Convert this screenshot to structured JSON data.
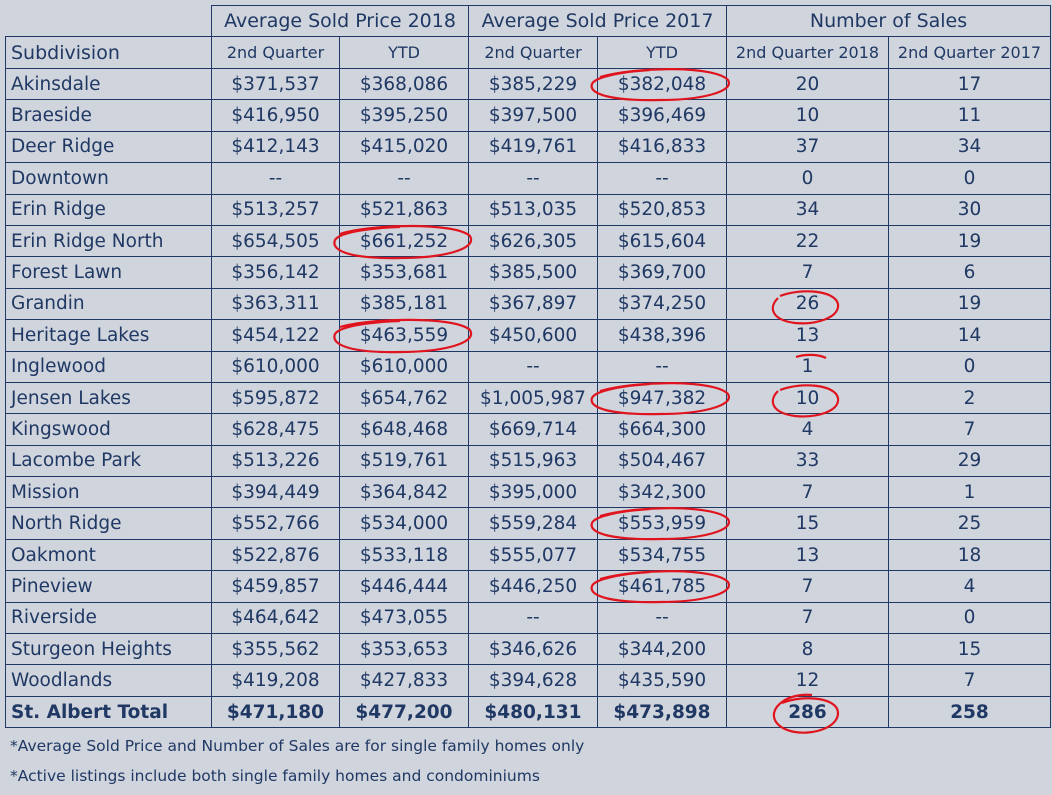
{
  "group_headers": [
    "Average Sold Price 2018",
    "Average Sold Price 2017",
    "Number of Sales"
  ],
  "column_headers": [
    "Subdivision",
    "2nd Quarter",
    "YTD",
    "2nd Quarter",
    "YTD",
    "2nd Quarter 2018",
    "2nd Quarter 2017"
  ],
  "rows": [
    [
      "Akinsdale",
      "$371,537",
      "$368,086",
      "$385,229",
      "$382,048",
      "20",
      "17"
    ],
    [
      "Braeside",
      "$416,950",
      "$395,250",
      "$397,500",
      "$396,469",
      "10",
      "11"
    ],
    [
      "Deer Ridge",
      "$412,143",
      "$415,020",
      "$419,761",
      "$416,833",
      "37",
      "34"
    ],
    [
      "Downtown",
      "--",
      "--",
      "--",
      "--",
      "0",
      "0"
    ],
    [
      "Erin Ridge",
      "$513,257",
      "$521,863",
      "$513,035",
      "$520,853",
      "34",
      "30"
    ],
    [
      "Erin Ridge North",
      "$654,505",
      "$661,252",
      "$626,305",
      "$615,604",
      "22",
      "19"
    ],
    [
      "Forest Lawn",
      "$356,142",
      "$353,681",
      "$385,500",
      "$369,700",
      "7",
      "6"
    ],
    [
      "Grandin",
      "$363,311",
      "$385,181",
      "$367,897",
      "$374,250",
      "26",
      "19"
    ],
    [
      "Heritage Lakes",
      "$454,122",
      "$463,559",
      "$450,600",
      "$438,396",
      "13",
      "14"
    ],
    [
      "Inglewood",
      "$610,000",
      "$610,000",
      "--",
      "--",
      "1",
      "0"
    ],
    [
      "Jensen Lakes",
      "$595,872",
      "$654,762",
      "$1,005,987",
      "$947,382",
      "10",
      "2"
    ],
    [
      "Kingswood",
      "$628,475",
      "$648,468",
      "$669,714",
      "$664,300",
      "4",
      "7"
    ],
    [
      "Lacombe Park",
      "$513,226",
      "$519,761",
      "$515,963",
      "$504,467",
      "33",
      "29"
    ],
    [
      "Mission",
      "$394,449",
      "$364,842",
      "$395,000",
      "$342,300",
      "7",
      "1"
    ],
    [
      "North Ridge",
      "$552,766",
      "$534,000",
      "$559,284",
      "$553,959",
      "15",
      "25"
    ],
    [
      "Oakmont",
      "$522,876",
      "$533,118",
      "$555,077",
      "$534,755",
      "13",
      "18"
    ],
    [
      "Pineview",
      "$459,857",
      "$446,444",
      "$446,250",
      "$461,785",
      "7",
      "4"
    ],
    [
      "Riverside",
      "$464,642",
      "$473,055",
      "--",
      "--",
      "7",
      "0"
    ],
    [
      "Sturgeon Heights",
      "$355,562",
      "$353,653",
      "$346,626",
      "$344,200",
      "8",
      "15"
    ],
    [
      "Woodlands",
      "$419,208",
      "$427,833",
      "$394,628",
      "$435,590",
      "12",
      "7"
    ]
  ],
  "total_row": [
    "St. Albert Total",
    "$471,180",
    "$477,200",
    "$480,131",
    "$473,898",
    "286",
    "258"
  ],
  "notes": [
    "*Average Sold Price and Number of Sales are for single family homes only",
    "*Active listings include both single family homes and condominiums"
  ],
  "colors": {
    "text": "#1f3864",
    "background": "#d0d4dc",
    "annotation": "#e0141e"
  }
}
